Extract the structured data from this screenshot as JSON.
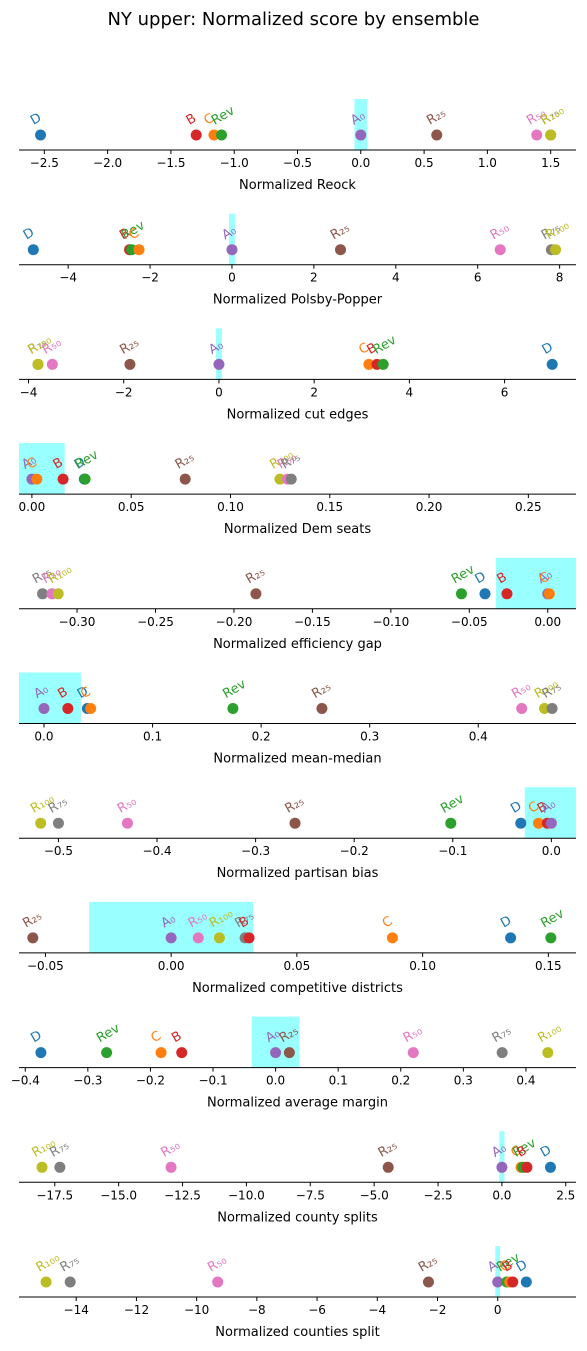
{
  "title": "NY upper: Normalized score by ensemble",
  "colors": {
    "D": "#1f77b4",
    "C": "#ff7f0e",
    "Rev": "#2ca02c",
    "B": "#d62728",
    "A0": "#9467bd",
    "R25": "#8c564b",
    "R50": "#e377c2",
    "R75": "#7f7f7f",
    "R100": "#bcbd22",
    "band": "#00ffff"
  },
  "chart_data": [
    {
      "type": "scatter",
      "xlabel": "Normalized Reock",
      "xlim": [
        -2.7,
        1.7
      ],
      "xticks": [
        -2.5,
        -2.0,
        -1.5,
        -1.0,
        -0.5,
        0.0,
        0.5,
        1.0,
        1.5
      ],
      "tick_labels": [
        "−2.5",
        "−2.0",
        "−1.5",
        "−1.0",
        "−0.5",
        "0.0",
        "0.5",
        "1.0",
        "1.5"
      ],
      "band": [
        -0.05,
        0.05
      ],
      "points": [
        {
          "label": "D",
          "key": "D",
          "x": -2.53
        },
        {
          "label": "B",
          "key": "B",
          "x": -1.3
        },
        {
          "label": "C",
          "key": "C",
          "x": -1.16
        },
        {
          "label": "Rev",
          "key": "Rev",
          "x": -1.1
        },
        {
          "label": "A₀",
          "key": "A0",
          "x": 0.0
        },
        {
          "label": "R₂₅",
          "key": "R25",
          "x": 0.6
        },
        {
          "label": "R₅₀",
          "key": "R50",
          "x": 1.39
        },
        {
          "label": "R₇₅",
          "key": "R75",
          "x": 1.5
        },
        {
          "label": "R₁₀₀",
          "key": "R100",
          "x": 1.5
        }
      ]
    },
    {
      "type": "scatter",
      "xlabel": "Normalized Polsby-Popper",
      "xlim": [
        -5.2,
        8.4
      ],
      "xticks": [
        -4,
        -2,
        0,
        2,
        4,
        6,
        8
      ],
      "tick_labels": [
        "−4",
        "−2",
        "0",
        "2",
        "4",
        "6",
        "8"
      ],
      "band": [
        -0.07,
        0.07
      ],
      "points": [
        {
          "label": "D",
          "key": "D",
          "x": -4.85
        },
        {
          "label": "B",
          "key": "B",
          "x": -2.5
        },
        {
          "label": "Rev",
          "key": "Rev",
          "x": -2.45
        },
        {
          "label": "C",
          "key": "C",
          "x": -2.27
        },
        {
          "label": "A₀",
          "key": "A0",
          "x": 0.0
        },
        {
          "label": "R₂₅",
          "key": "R25",
          "x": 2.65
        },
        {
          "label": "R₅₀",
          "key": "R50",
          "x": 6.55
        },
        {
          "label": "R₇₅",
          "key": "R75",
          "x": 7.8
        },
        {
          "label": "R₁₀₀",
          "key": "R100",
          "x": 7.9
        }
      ]
    },
    {
      "type": "scatter",
      "xlabel": "Normalized cut edges",
      "xlim": [
        -4.2,
        7.5
      ],
      "xticks": [
        -4,
        -2,
        0,
        2,
        4,
        6
      ],
      "tick_labels": [
        "−4",
        "−2",
        "0",
        "2",
        "4",
        "6"
      ],
      "band": [
        -0.06,
        0.06
      ],
      "points": [
        {
          "label": "R₇₅",
          "key": "R75",
          "x": -3.8
        },
        {
          "label": "R₁₀₀",
          "key": "R100",
          "x": -3.8
        },
        {
          "label": "R₅₀",
          "key": "R50",
          "x": -3.5
        },
        {
          "label": "R₂₅",
          "key": "R25",
          "x": -1.87
        },
        {
          "label": "A₀",
          "key": "A0",
          "x": 0.0
        },
        {
          "label": "C",
          "key": "C",
          "x": 3.15
        },
        {
          "label": "B",
          "key": "B",
          "x": 3.32
        },
        {
          "label": "Rev",
          "key": "Rev",
          "x": 3.45
        },
        {
          "label": "D",
          "key": "D",
          "x": 7.0
        }
      ]
    },
    {
      "type": "scatter",
      "xlabel": "Normalized Dem seats",
      "xlim": [
        -0.0065,
        0.274
      ],
      "xticks": [
        0.0,
        0.05,
        0.1,
        0.15,
        0.2,
        0.25
      ],
      "tick_labels": [
        "0.00",
        "0.05",
        "0.10",
        "0.15",
        "0.20",
        "0.25"
      ],
      "band": [
        -0.0065,
        0.0165
      ],
      "points": [
        {
          "label": "A₀",
          "key": "A0",
          "x": 0.0
        },
        {
          "label": "C",
          "key": "C",
          "x": 0.0025
        },
        {
          "label": "B",
          "key": "B",
          "x": 0.0157
        },
        {
          "label": "D",
          "key": "D",
          "x": 0.0264
        },
        {
          "label": "Rev",
          "key": "Rev",
          "x": 0.0268
        },
        {
          "label": "R₂₅",
          "key": "R25",
          "x": 0.0772
        },
        {
          "label": "R₁₀₀",
          "key": "R100",
          "x": 0.1249
        },
        {
          "label": "R₅₀",
          "key": "R50",
          "x": 0.1287
        },
        {
          "label": "R₇₅",
          "key": "R75",
          "x": 0.1306
        }
      ]
    },
    {
      "type": "scatter",
      "xlabel": "Normalized efficiency gap",
      "xlim": [
        -0.337,
        0.018
      ],
      "xticks": [
        -0.3,
        -0.25,
        -0.2,
        -0.15,
        -0.1,
        -0.05,
        0.0
      ],
      "tick_labels": [
        "−0.30",
        "−0.25",
        "−0.20",
        "−0.15",
        "−0.10",
        "−0.05",
        "0.00"
      ],
      "band": [
        -0.033,
        0.018
      ],
      "points": [
        {
          "label": "R₇₅",
          "key": "R75",
          "x": -0.322
        },
        {
          "label": "R₅₀",
          "key": "R50",
          "x": -0.316
        },
        {
          "label": "R₁₀₀",
          "key": "R100",
          "x": -0.312
        },
        {
          "label": "R₂₅",
          "key": "R25",
          "x": -0.186
        },
        {
          "label": "Rev",
          "key": "Rev",
          "x": -0.055
        },
        {
          "label": "D",
          "key": "D",
          "x": -0.04
        },
        {
          "label": "B",
          "key": "B",
          "x": -0.026
        },
        {
          "label": "A₀",
          "key": "A0",
          "x": 0.0
        },
        {
          "label": "C",
          "key": "C",
          "x": 0.001
        }
      ]
    },
    {
      "type": "scatter",
      "xlabel": "Normalized mean-median",
      "xlim": [
        -0.023,
        0.49
      ],
      "xticks": [
        0.0,
        0.1,
        0.2,
        0.3,
        0.4
      ],
      "tick_labels": [
        "0.0",
        "0.1",
        "0.2",
        "0.3",
        "0.4"
      ],
      "band": [
        -0.023,
        0.034
      ],
      "points": [
        {
          "label": "A₀",
          "key": "A0",
          "x": 0.0
        },
        {
          "label": "B",
          "key": "B",
          "x": 0.022
        },
        {
          "label": "D",
          "key": "D",
          "x": 0.04
        },
        {
          "label": "C",
          "key": "C",
          "x": 0.043
        },
        {
          "label": "Rev",
          "key": "Rev",
          "x": 0.174
        },
        {
          "label": "R₂₅",
          "key": "R25",
          "x": 0.256
        },
        {
          "label": "R₅₀",
          "key": "R50",
          "x": 0.44
        },
        {
          "label": "R₁₀₀",
          "key": "R100",
          "x": 0.461
        },
        {
          "label": "R₇₅",
          "key": "R75",
          "x": 0.468
        }
      ]
    },
    {
      "type": "scatter",
      "xlabel": "Normalized partisan bias",
      "xlim": [
        -0.54,
        0.025
      ],
      "xticks": [
        -0.5,
        -0.4,
        -0.3,
        -0.2,
        -0.1,
        0.0
      ],
      "tick_labels": [
        "−0.5",
        "−0.4",
        "−0.3",
        "−0.2",
        "−0.1",
        "0.0"
      ],
      "band": [
        -0.027,
        0.025
      ],
      "points": [
        {
          "label": "R₁₀₀",
          "key": "R100",
          "x": -0.518
        },
        {
          "label": "R₇₅",
          "key": "R75",
          "x": -0.5
        },
        {
          "label": "R₅₀",
          "key": "R50",
          "x": -0.43
        },
        {
          "label": "R₂₅",
          "key": "R25",
          "x": -0.26
        },
        {
          "label": "Rev",
          "key": "Rev",
          "x": -0.102
        },
        {
          "label": "D",
          "key": "D",
          "x": -0.031
        },
        {
          "label": "C",
          "key": "C",
          "x": -0.013
        },
        {
          "label": "B",
          "key": "B",
          "x": -0.004
        },
        {
          "label": "A₀",
          "key": "A0",
          "x": 0.0
        }
      ]
    },
    {
      "type": "scatter",
      "xlabel": "Normalized competitive districts",
      "xlim": [
        -0.0605,
        0.161
      ],
      "xticks": [
        -0.05,
        0.0,
        0.05,
        0.1,
        0.15
      ],
      "tick_labels": [
        "−0.05",
        "0.00",
        "0.05",
        "0.10",
        "0.15"
      ],
      "band": [
        -0.0326,
        0.0326
      ],
      "points": [
        {
          "label": "R₂₅",
          "key": "R25",
          "x": -0.055
        },
        {
          "label": "A₀",
          "key": "A0",
          "x": 0.0
        },
        {
          "label": "R₅₀",
          "key": "R50",
          "x": 0.0108
        },
        {
          "label": "R₁₀₀",
          "key": "R100",
          "x": 0.0192
        },
        {
          "label": "R₇₅",
          "key": "R75",
          "x": 0.0294
        },
        {
          "label": "B",
          "key": "B",
          "x": 0.031
        },
        {
          "label": "C",
          "key": "C",
          "x": 0.088
        },
        {
          "label": "D",
          "key": "D",
          "x": 0.135
        },
        {
          "label": "Rev",
          "key": "Rev",
          "x": 0.151
        }
      ]
    },
    {
      "type": "scatter",
      "xlabel": "Normalized average margin",
      "xlim": [
        -0.41,
        0.48
      ],
      "xticks": [
        -0.4,
        -0.3,
        -0.2,
        -0.1,
        0.0,
        0.1,
        0.2,
        0.3,
        0.4
      ],
      "tick_labels": [
        "−0.4",
        "−0.3",
        "−0.2",
        "−0.1",
        "0.0",
        "0.1",
        "0.2",
        "0.3",
        "0.4"
      ],
      "band": [
        -0.038,
        0.038
      ],
      "points": [
        {
          "label": "D",
          "key": "D",
          "x": -0.375
        },
        {
          "label": "Rev",
          "key": "Rev",
          "x": -0.27
        },
        {
          "label": "C",
          "key": "C",
          "x": -0.183
        },
        {
          "label": "B",
          "key": "B",
          "x": -0.15
        },
        {
          "label": "A₀",
          "key": "A0",
          "x": 0.0
        },
        {
          "label": "R₂₅",
          "key": "R25",
          "x": 0.022
        },
        {
          "label": "R₅₀",
          "key": "R50",
          "x": 0.22
        },
        {
          "label": "R₇₅",
          "key": "R75",
          "x": 0.362
        },
        {
          "label": "R₁₀₀",
          "key": "R100",
          "x": 0.435
        }
      ]
    },
    {
      "type": "scatter",
      "xlabel": "Normalized county splits",
      "xlim": [
        -18.9,
        2.9
      ],
      "xticks": [
        -17.5,
        -15.0,
        -12.5,
        -10.0,
        -7.5,
        -5.0,
        -2.5,
        0.0,
        2.5
      ],
      "tick_labels": [
        "−17.5",
        "−15.0",
        "−12.5",
        "−10.0",
        "−7.5",
        "−5.0",
        "−2.5",
        "0.0",
        "2.5"
      ],
      "band": [
        -0.1,
        0.1
      ],
      "points": [
        {
          "label": "R₁₀₀",
          "key": "R100",
          "x": -18.0
        },
        {
          "label": "R₇₅",
          "key": "R75",
          "x": -17.3
        },
        {
          "label": "R₅₀",
          "key": "R50",
          "x": -12.95
        },
        {
          "label": "R₂₅",
          "key": "R25",
          "x": -4.45
        },
        {
          "label": "A₀",
          "key": "A0",
          "x": 0.0
        },
        {
          "label": "C",
          "key": "C",
          "x": 0.75
        },
        {
          "label": "Rev",
          "key": "Rev",
          "x": 0.82
        },
        {
          "label": "B",
          "key": "B",
          "x": 0.98
        },
        {
          "label": "D",
          "key": "D",
          "x": 1.9
        }
      ]
    },
    {
      "type": "scatter",
      "xlabel": "Normalized counties split",
      "xlim": [
        -15.9,
        2.6
      ],
      "xticks": [
        -14,
        -12,
        -10,
        -8,
        -6,
        -4,
        -2,
        0
      ],
      "tick_labels": [
        "−14",
        "−12",
        "−10",
        "−8",
        "−6",
        "−4",
        "−2",
        "0"
      ],
      "band": [
        -0.08,
        0.08
      ],
      "points": [
        {
          "label": "R₁₀₀",
          "key": "R100",
          "x": -15.0
        },
        {
          "label": "R₇₅",
          "key": "R75",
          "x": -14.2
        },
        {
          "label": "R₅₀",
          "key": "R50",
          "x": -9.3
        },
        {
          "label": "R₂₅",
          "key": "R25",
          "x": -2.3
        },
        {
          "label": "A₀",
          "key": "A0",
          "x": 0.0
        },
        {
          "label": "Rev",
          "key": "Rev",
          "x": 0.3
        },
        {
          "label": "C",
          "key": "C",
          "x": 0.4
        },
        {
          "label": "B",
          "key": "B",
          "x": 0.5
        },
        {
          "label": "D",
          "key": "D",
          "x": 0.95
        }
      ]
    }
  ]
}
